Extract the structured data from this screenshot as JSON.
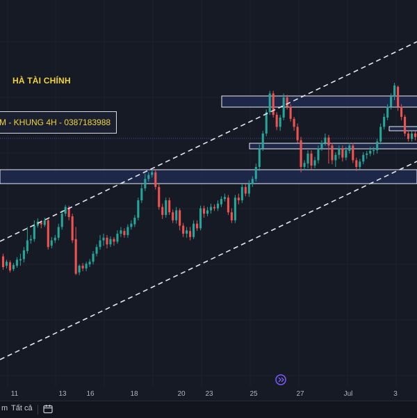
{
  "chart_data": {
    "type": "candlestick",
    "annotations": {
      "author": "HÀ TÀI CHÍNH",
      "info": "M - KHUNG 4H - 0387183988"
    },
    "x_ticks": [
      "11",
      "13",
      "16",
      "18",
      "20",
      "23",
      "25",
      "27",
      "Jul",
      "3"
    ],
    "ylim": [
      0,
      600
    ],
    "candles": [
      [
        384,
        400,
        380,
        404
      ],
      [
        398,
        392,
        389,
        402
      ],
      [
        393,
        405,
        390,
        408
      ],
      [
        403,
        397,
        394,
        406
      ],
      [
        398,
        389,
        385,
        401
      ],
      [
        390,
        388,
        380,
        398
      ],
      [
        388,
        375,
        370,
        393
      ],
      [
        376,
        360,
        340,
        380
      ],
      [
        360,
        358,
        352,
        365
      ],
      [
        358,
        338,
        330,
        362
      ],
      [
        338,
        332,
        327,
        341
      ],
      [
        333,
        336,
        330,
        342
      ],
      [
        337,
        330,
        326,
        340
      ],
      [
        330,
        370,
        328,
        374
      ],
      [
        368,
        360,
        355,
        372
      ],
      [
        360,
        356,
        352,
        364
      ],
      [
        356,
        340,
        335,
        360
      ],
      [
        340,
        320,
        315,
        344
      ],
      [
        320,
        310,
        307,
        324
      ],
      [
        311,
        325,
        308,
        330
      ],
      [
        324,
        360,
        320,
        364
      ],
      [
        358,
        410,
        340,
        412
      ],
      [
        408,
        398,
        396,
        412
      ],
      [
        398,
        402,
        394,
        406
      ],
      [
        402,
        395,
        392,
        406
      ],
      [
        396,
        392,
        388,
        400
      ],
      [
        392,
        380,
        376,
        396
      ],
      [
        380,
        370,
        366,
        384
      ],
      [
        370,
        360,
        352,
        374
      ],
      [
        360,
        356,
        350,
        368
      ],
      [
        356,
        366,
        352,
        372
      ],
      [
        366,
        358,
        354,
        370
      ],
      [
        358,
        362,
        355,
        368
      ],
      [
        362,
        350,
        345,
        365
      ],
      [
        350,
        345,
        340,
        355
      ],
      [
        346,
        352,
        342,
        356
      ],
      [
        352,
        340,
        336,
        356
      ],
      [
        340,
        335,
        330,
        344
      ],
      [
        336,
        326,
        322,
        340
      ],
      [
        326,
        300,
        296,
        330
      ],
      [
        300,
        282,
        276,
        304
      ],
      [
        282,
        268,
        260,
        286
      ],
      [
        268,
        262,
        258,
        272
      ],
      [
        262,
        258,
        254,
        266
      ],
      [
        258,
        280,
        254,
        284
      ],
      [
        280,
        310,
        276,
        314
      ],
      [
        310,
        322,
        305,
        328
      ],
      [
        322,
        300,
        296,
        326
      ],
      [
        300,
        318,
        296,
        322
      ],
      [
        318,
        330,
        314,
        334
      ],
      [
        330,
        315,
        310,
        335
      ],
      [
        315,
        338,
        312,
        345
      ],
      [
        338,
        350,
        334,
        355
      ],
      [
        350,
        345,
        340,
        356
      ],
      [
        346,
        355,
        340,
        360
      ],
      [
        355,
        335,
        330,
        358
      ],
      [
        335,
        342,
        330,
        346
      ],
      [
        342,
        312,
        308,
        345
      ],
      [
        312,
        320,
        308,
        326
      ],
      [
        320,
        315,
        310,
        324
      ],
      [
        315,
        310,
        305,
        320
      ],
      [
        310,
        312,
        306,
        316
      ],
      [
        312,
        305,
        300,
        316
      ],
      [
        306,
        298,
        294,
        310
      ],
      [
        298,
        295,
        290,
        302
      ],
      [
        296,
        318,
        292,
        322
      ],
      [
        318,
        330,
        312,
        334
      ],
      [
        330,
        296,
        292,
        334
      ],
      [
        296,
        300,
        290,
        306
      ],
      [
        300,
        280,
        276,
        304
      ],
      [
        280,
        290,
        276,
        294
      ],
      [
        290,
        275,
        270,
        295
      ],
      [
        276,
        268,
        264,
        280
      ],
      [
        268,
        250,
        245,
        272
      ],
      [
        250,
        222,
        216,
        256
      ],
      [
        222,
        200,
        196,
        226
      ],
      [
        200,
        168,
        164,
        204
      ],
      [
        168,
        140,
        136,
        172
      ],
      [
        140,
        172,
        136,
        176
      ],
      [
        172,
        190,
        168,
        195
      ],
      [
        190,
        176,
        172,
        196
      ],
      [
        176,
        146,
        140,
        180
      ],
      [
        146,
        160,
        142,
        164
      ],
      [
        160,
        178,
        156,
        182
      ],
      [
        178,
        190,
        175,
        196
      ],
      [
        190,
        210,
        185,
        214
      ],
      [
        210,
        250,
        205,
        258
      ],
      [
        250,
        244,
        240,
        255
      ],
      [
        245,
        230,
        225,
        252
      ],
      [
        230,
        248,
        225,
        254
      ],
      [
        248,
        240,
        235,
        252
      ],
      [
        240,
        222,
        218,
        245
      ],
      [
        222,
        214,
        210,
        226
      ],
      [
        214,
        206,
        200,
        218
      ],
      [
        206,
        218,
        202,
        245
      ],
      [
        218,
        240,
        214,
        246
      ],
      [
        240,
        232,
        228,
        250
      ],
      [
        232,
        222,
        218,
        238
      ],
      [
        222,
        236,
        218,
        242
      ],
      [
        236,
        225,
        220,
        240
      ],
      [
        226,
        218,
        214,
        230
      ],
      [
        218,
        240,
        214,
        244
      ],
      [
        240,
        250,
        236,
        256
      ],
      [
        250,
        242,
        238,
        254
      ],
      [
        242,
        232,
        228,
        246
      ],
      [
        232,
        230,
        226,
        238
      ],
      [
        230,
        226,
        220,
        234
      ],
      [
        226,
        225,
        220,
        232
      ],
      [
        225,
        212,
        208,
        230
      ],
      [
        212,
        190,
        185,
        216
      ],
      [
        190,
        175,
        170,
        194
      ],
      [
        176,
        160,
        156,
        180
      ],
      [
        160,
        145,
        140,
        164
      ],
      [
        145,
        128,
        124,
        150
      ],
      [
        130,
        160,
        128,
        166
      ],
      [
        160,
        175,
        156,
        180
      ],
      [
        175,
        200,
        172,
        204
      ],
      [
        200,
        208,
        195,
        212
      ],
      [
        208,
        200,
        196,
        212
      ],
      [
        200,
        205,
        196,
        210
      ]
    ],
    "zones": [
      {
        "kind": "supply",
        "label": ""
      },
      {
        "kind": "mid",
        "label": ""
      },
      {
        "kind": "demand",
        "label": ""
      },
      {
        "kind": "small",
        "label": ""
      }
    ]
  },
  "bottom_bar": {
    "range_label": "m",
    "all_label": "Tất cả",
    "calendar_icon": "calendar-icon"
  },
  "colors": {
    "bg": "#161a25",
    "grid": "#1e2230",
    "bull": "#26a69a",
    "bear": "#ef5350",
    "zone_fill": "#1f2a4d",
    "zone_stroke": "#e8ecf5",
    "trend": "#e6e8ee",
    "axis_text": "#b2b5be",
    "accent": "#7b5cff"
  }
}
